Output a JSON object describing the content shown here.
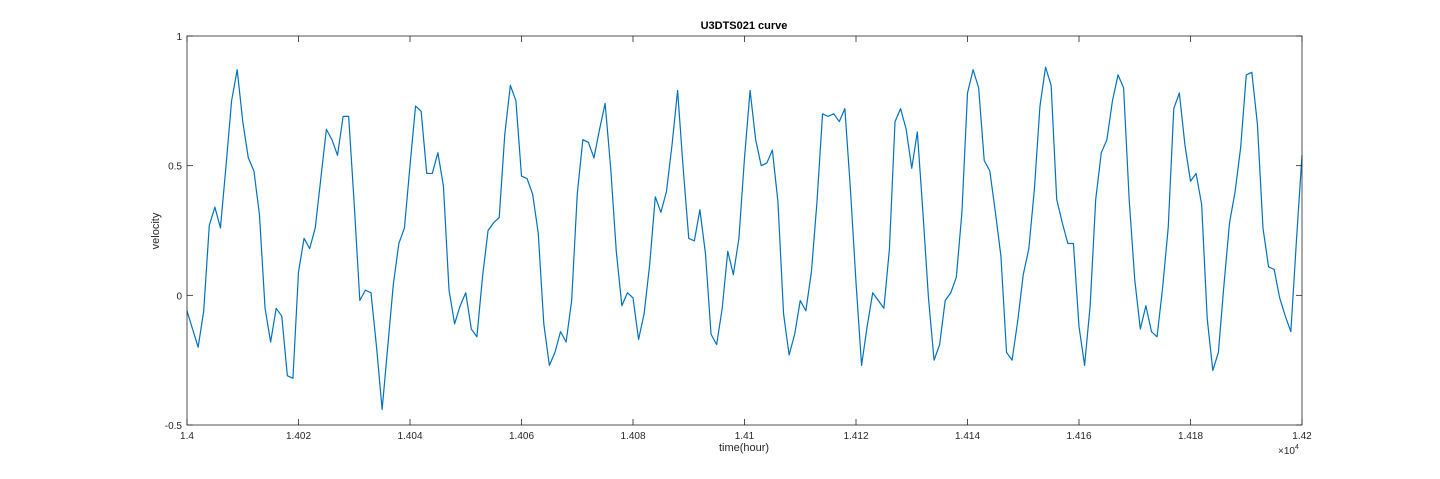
{
  "chart_data": {
    "type": "line",
    "title": "U3DTS021 curve",
    "xlabel": "time(hour)",
    "ylabel": "velocity",
    "x_exponent_label": "×10",
    "x_exponent_power": "4",
    "xlim": [
      14000,
      14200
    ],
    "ylim": [
      -0.5,
      1
    ],
    "xticks": [
      14000,
      14020,
      14040,
      14060,
      14080,
      14100,
      14120,
      14140,
      14160,
      14180,
      14200
    ],
    "xtick_labels": [
      "1.4",
      "1.402",
      "1.404",
      "1.406",
      "1.408",
      "1.41",
      "1.412",
      "1.414",
      "1.416",
      "1.418",
      "1.42"
    ],
    "yticks": [
      -0.5,
      0,
      0.5,
      1
    ],
    "ytick_labels": [
      "-0.5",
      "0",
      "0.5",
      "1"
    ],
    "grid": false,
    "line_color": "#0072bd",
    "series": [
      {
        "x_start": 14000,
        "x_step": 1,
        "values": [
          -0.06,
          -0.13,
          -0.2,
          -0.06,
          0.27,
          0.34,
          0.26,
          0.5,
          0.75,
          0.87,
          0.67,
          0.53,
          0.48,
          0.31,
          -0.05,
          -0.18,
          -0.05,
          -0.08,
          -0.31,
          -0.32,
          0.09,
          0.22,
          0.18,
          0.26,
          0.45,
          0.64,
          0.6,
          0.54,
          0.69,
          0.69,
          0.35,
          -0.02,
          0.02,
          0.01,
          -0.2,
          -0.44,
          -0.2,
          0.04,
          0.2,
          0.26,
          0.5,
          0.73,
          0.71,
          0.47,
          0.47,
          0.55,
          0.42,
          0.02,
          -0.11,
          -0.04,
          0.01,
          -0.13,
          -0.16,
          0.07,
          0.25,
          0.28,
          0.3,
          0.62,
          0.81,
          0.75,
          0.46,
          0.45,
          0.39,
          0.24,
          -0.11,
          -0.27,
          -0.22,
          -0.14,
          -0.18,
          -0.02,
          0.39,
          0.6,
          0.59,
          0.53,
          0.64,
          0.74,
          0.49,
          0.17,
          -0.04,
          0.01,
          -0.01,
          -0.17,
          -0.07,
          0.12,
          0.38,
          0.32,
          0.4,
          0.58,
          0.79,
          0.49,
          0.22,
          0.21,
          0.33,
          0.16,
          -0.15,
          -0.19,
          -0.05,
          0.17,
          0.08,
          0.22,
          0.53,
          0.79,
          0.6,
          0.5,
          0.51,
          0.56,
          0.36,
          -0.07,
          -0.23,
          -0.15,
          -0.02,
          -0.06,
          0.09,
          0.36,
          0.7,
          0.69,
          0.7,
          0.67,
          0.72,
          0.41,
          0.05,
          -0.27,
          -0.12,
          0.01,
          -0.02,
          -0.05,
          0.18,
          0.67,
          0.72,
          0.64,
          0.49,
          0.63,
          0.32,
          -0.01,
          -0.25,
          -0.19,
          -0.02,
          0.01,
          0.07,
          0.32,
          0.78,
          0.87,
          0.8,
          0.52,
          0.48,
          0.32,
          0.15,
          -0.22,
          -0.25,
          -0.1,
          0.08,
          0.18,
          0.41,
          0.73,
          0.88,
          0.81,
          0.37,
          0.28,
          0.2,
          0.2,
          -0.12,
          -0.27,
          -0.04,
          0.37,
          0.55,
          0.6,
          0.75,
          0.85,
          0.8,
          0.37,
          0.06,
          -0.13,
          -0.04,
          -0.14,
          -0.16,
          0.03,
          0.26,
          0.72,
          0.78,
          0.58,
          0.44,
          0.47,
          0.35,
          -0.09,
          -0.29,
          -0.22,
          0.04,
          0.28,
          0.4,
          0.57,
          0.85,
          0.86,
          0.66,
          0.26,
          0.11,
          0.1,
          -0.01,
          -0.08,
          -0.14,
          0.21,
          0.54
        ]
      }
    ]
  }
}
